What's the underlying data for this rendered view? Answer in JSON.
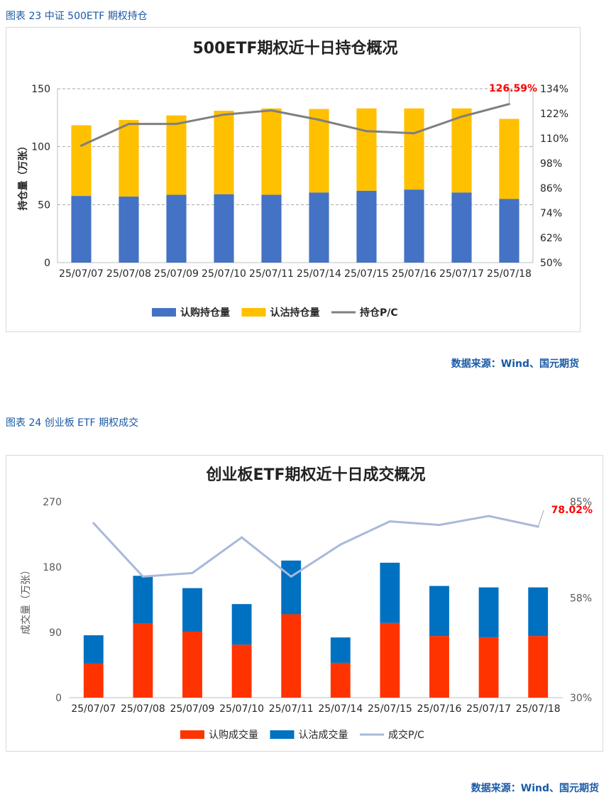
{
  "captions": {
    "fig23": "图表 23  中证 500ETF 期权持仓",
    "fig24": "图表 24  创业板 ETF 期权成交",
    "source1": "数据来源：Wind、国元期货",
    "source2": "数据来源：Wind、国元期货"
  },
  "colors": {
    "call_blue": "#4472c4",
    "put_yellow": "#ffc000",
    "pc_gray": "#7f7f7f",
    "call_red": "#ff3300",
    "put_blue": "#0070c0",
    "pc_lavender": "#a9b8db",
    "highlight_red": "#ff0000"
  },
  "chart_data": [
    {
      "type": "bar",
      "stacked": true,
      "title": "500ETF期权近十日持仓概况",
      "ylabel": "持仓量（万张）",
      "categories": [
        "25/07/07",
        "25/07/08",
        "25/07/09",
        "25/07/10",
        "25/07/11",
        "25/07/14",
        "25/07/15",
        "25/07/16",
        "25/07/17",
        "25/07/18"
      ],
      "ylim": [
        0,
        150
      ],
      "yticks": [
        "0",
        "50",
        "100",
        "150"
      ],
      "y2lim": [
        50,
        134
      ],
      "y2ticks": [
        "50%",
        "62%",
        "74%",
        "86%",
        "98%",
        "110%",
        "122%",
        "134%"
      ],
      "series": [
        {
          "name": "认购持仓量",
          "type": "bar",
          "axis": "left",
          "values": [
            57.5,
            57,
            58.5,
            59,
            58.5,
            60.5,
            62,
            63,
            60.5,
            55
          ]
        },
        {
          "name": "认沽持仓量",
          "type": "bar",
          "axis": "left",
          "values": [
            61,
            66,
            68.5,
            72,
            74.5,
            72,
            71,
            70,
            72.5,
            69
          ]
        },
        {
          "name": "持仓P/C",
          "type": "line",
          "axis": "right",
          "values": [
            106.5,
            117,
            117,
            121.5,
            123.5,
            119,
            113.5,
            112.5,
            120.5,
            126.59
          ]
        }
      ],
      "annotation": "126.59%",
      "grid": true,
      "legend": "bottom"
    },
    {
      "type": "bar",
      "stacked": true,
      "title": "创业板ETF期权近十日成交概况",
      "ylabel": "成交量（万张）",
      "categories": [
        "25/07/07",
        "25/07/08",
        "25/07/09",
        "25/07/10",
        "25/07/11",
        "25/07/14",
        "25/07/15",
        "25/07/16",
        "25/07/17",
        "25/07/18"
      ],
      "ylim": [
        0,
        270
      ],
      "yticks": [
        "0",
        "90",
        "180",
        "270"
      ],
      "y2lim": [
        30,
        85
      ],
      "y2ticks": [
        "30%",
        "58%",
        "85%"
      ],
      "series": [
        {
          "name": "认购成交量",
          "type": "bar",
          "axis": "left",
          "values": [
            47,
            102,
            91,
            73,
            115,
            48,
            103,
            85,
            83,
            85
          ]
        },
        {
          "name": "认沽成交量",
          "type": "bar",
          "axis": "left",
          "values": [
            39,
            66,
            60,
            56,
            74,
            35,
            83,
            69,
            69,
            67
          ]
        },
        {
          "name": "成交P/C",
          "type": "line",
          "axis": "right",
          "values": [
            79,
            64,
            65,
            75,
            64,
            73,
            79.5,
            78.5,
            81,
            78.02
          ]
        }
      ],
      "annotation": "78.02%",
      "grid": false,
      "legend": "bottom"
    }
  ]
}
